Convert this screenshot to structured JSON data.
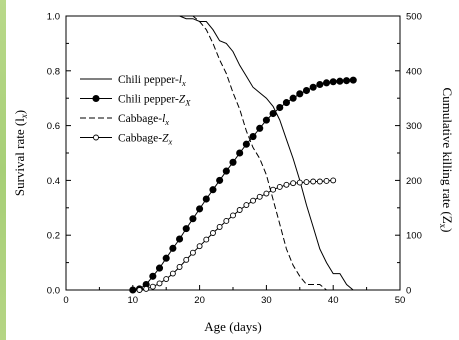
{
  "chart_data": {
    "type": "line",
    "xlabel": "Age (days)",
    "ylabel_left": "Survival rate (l",
    "ylabel_left_sub": "x",
    "ylabel_right": "Cumulative killing rate (Z",
    "ylabel_right_sub": "x",
    "xlim": [
      0,
      50
    ],
    "ylim_left": [
      0,
      1.0
    ],
    "ylim_right": [
      0,
      500
    ],
    "x_ticks": [
      "0",
      "10",
      "20",
      "30",
      "40",
      "50"
    ],
    "y_left_ticks": [
      "0.0",
      "0.2",
      "0.4",
      "0.6",
      "0.8",
      "1.0"
    ],
    "y_right_ticks": [
      "0",
      "100",
      "200",
      "300",
      "400",
      "500"
    ],
    "grid": false,
    "legend_position": "upper-left",
    "series": [
      {
        "name": "Chili pepper-",
        "name_sub": "x",
        "name_var": "l",
        "axis": "left",
        "style": "solid",
        "marker": "none",
        "x": [
          0,
          17,
          18,
          19,
          20,
          21,
          22,
          23,
          24,
          25,
          26,
          27,
          28,
          29,
          30,
          31,
          32,
          33,
          34,
          35,
          36,
          37,
          38,
          39,
          40,
          41,
          42,
          43
        ],
        "y": [
          1.0,
          1.0,
          0.99,
          0.99,
          0.98,
          0.98,
          0.95,
          0.91,
          0.9,
          0.87,
          0.82,
          0.78,
          0.74,
          0.72,
          0.7,
          0.67,
          0.62,
          0.55,
          0.48,
          0.4,
          0.31,
          0.23,
          0.15,
          0.1,
          0.06,
          0.06,
          0.02,
          0.0
        ]
      },
      {
        "name": "Chili pepper-",
        "name_sub": "X",
        "name_var": "Z",
        "axis": "right",
        "style": "solid",
        "marker": "filled-circle",
        "x": [
          10,
          11,
          12,
          13,
          14,
          15,
          16,
          17,
          18,
          19,
          20,
          21,
          22,
          23,
          24,
          25,
          26,
          27,
          28,
          29,
          30,
          31,
          32,
          33,
          34,
          35,
          36,
          37,
          38,
          39,
          40,
          41,
          42,
          43
        ],
        "y": [
          0,
          2,
          10,
          25,
          40,
          58,
          76,
          93,
          112,
          130,
          148,
          166,
          183,
          200,
          217,
          233,
          250,
          266,
          280,
          295,
          310,
          322,
          333,
          342,
          350,
          358,
          364,
          370,
          375,
          378,
          380,
          381,
          382,
          383
        ]
      },
      {
        "name": "Cabbage-",
        "name_sub": "x",
        "name_var": "l",
        "axis": "left",
        "style": "dashed",
        "marker": "none",
        "x": [
          0,
          19,
          20,
          21,
          22,
          23,
          24,
          25,
          26,
          27,
          28,
          29,
          30,
          31,
          32,
          33,
          34,
          35,
          36,
          37,
          38,
          39,
          40
        ],
        "y": [
          1.0,
          1.0,
          0.98,
          0.95,
          0.9,
          0.84,
          0.79,
          0.72,
          0.66,
          0.58,
          0.52,
          0.48,
          0.42,
          0.33,
          0.24,
          0.15,
          0.09,
          0.05,
          0.02,
          0.02,
          0.02,
          0.0,
          0.0
        ]
      },
      {
        "name": "Cabbage-",
        "name_sub": "x",
        "name_var": "Z",
        "axis": "right",
        "style": "solid",
        "marker": "open-circle",
        "x": [
          11,
          12,
          13,
          14,
          15,
          16,
          17,
          18,
          19,
          20,
          21,
          22,
          23,
          24,
          25,
          26,
          27,
          28,
          29,
          30,
          31,
          32,
          33,
          34,
          35,
          36,
          37,
          38,
          39,
          40
        ],
        "y": [
          0,
          2,
          6,
          12,
          20,
          30,
          42,
          55,
          68,
          80,
          92,
          104,
          115,
          126,
          136,
          146,
          155,
          163,
          170,
          176,
          183,
          188,
          192,
          195,
          196,
          197,
          198,
          198,
          199,
          200
        ]
      }
    ]
  }
}
